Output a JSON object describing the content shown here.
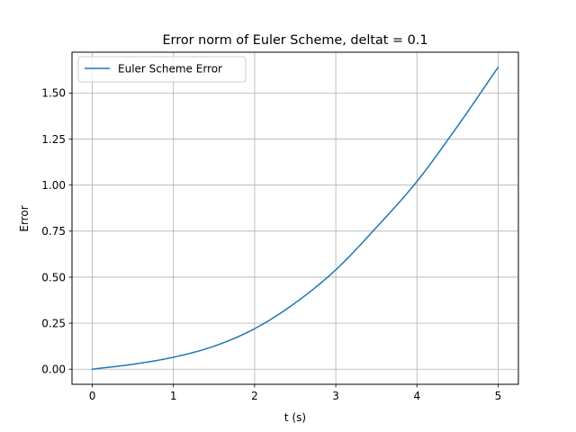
{
  "chart_data": {
    "type": "line",
    "title": "Error norm of Euler Scheme, deltat = 0.1",
    "xlabel": "t (s)",
    "ylabel": "Error",
    "xlim": [
      -0.25,
      5.25
    ],
    "ylim": [
      -0.082,
      1.722
    ],
    "xticks": [
      0,
      1,
      2,
      3,
      4,
      5
    ],
    "xtick_labels": [
      "0",
      "1",
      "2",
      "3",
      "4",
      "5"
    ],
    "yticks": [
      0.0,
      0.25,
      0.5,
      0.75,
      1.0,
      1.25,
      1.5
    ],
    "ytick_labels": [
      "0.00",
      "0.25",
      "0.50",
      "0.75",
      "1.00",
      "1.25",
      "1.50"
    ],
    "grid": true,
    "legend_position": "upper-left",
    "series": [
      {
        "name": "Euler Scheme Error",
        "color": "#1f77b4",
        "x": [
          0.0,
          0.5,
          1.0,
          1.5,
          2.0,
          2.5,
          3.0,
          3.5,
          4.0,
          4.5,
          5.0
        ],
        "y": [
          0.0,
          0.027,
          0.065,
          0.125,
          0.22,
          0.36,
          0.54,
          0.77,
          1.02,
          1.32,
          1.64
        ]
      }
    ]
  }
}
